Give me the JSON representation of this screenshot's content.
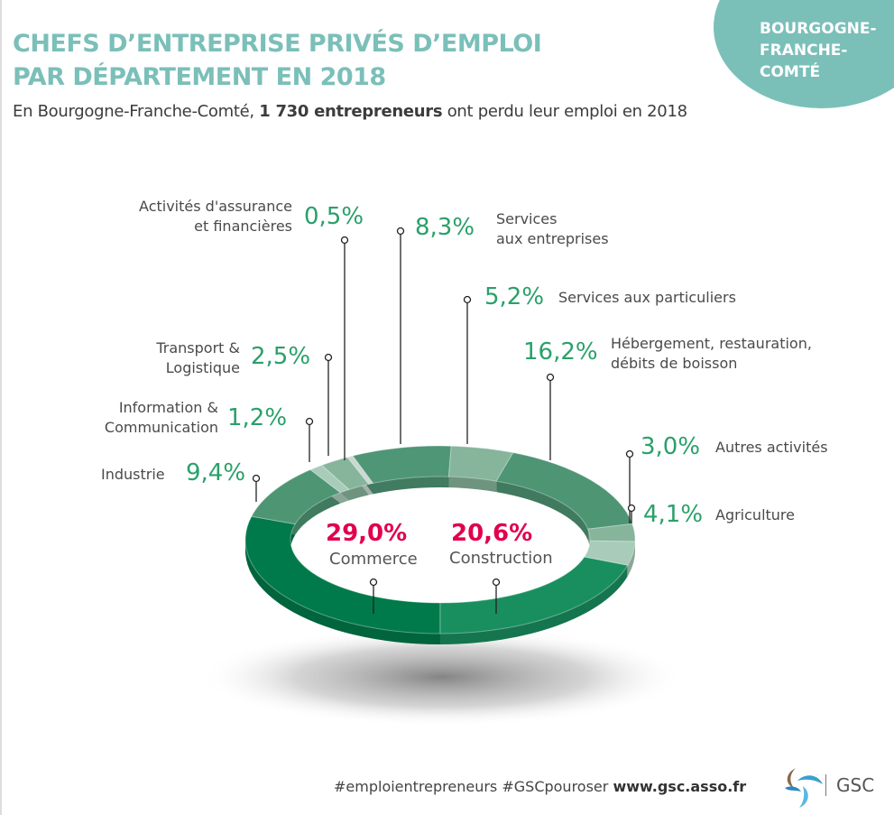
{
  "header": {
    "title_line1": "CHEFS D’ENTREPRISE PRIVÉS D’EMPLOI",
    "title_line2": "PAR DÉPARTEMENT EN 2018",
    "subtitle_pre": "En Bourgogne-Franche-Comté, ",
    "subtitle_bold": "1 730 entrepreneurs",
    "subtitle_post": " ont perdu leur emploi en 2018",
    "region": "BOURGOGNE-\nFRANCHE-\nCOMTÉ"
  },
  "footer": {
    "hashtags": "#emploientrepreneurs #GSCpouroser ",
    "url": "www.gsc.asso.fr",
    "brand": "GSC"
  },
  "colors": {
    "title": "#7bbfb9",
    "pct": "#2aa06a",
    "highlight": "#e0004d"
  },
  "chart_data": {
    "type": "pie",
    "variant": "3d-donut",
    "title": "CHEFS D’ENTREPRISE PRIVÉS D’EMPLOI PAR DÉPARTEMENT EN 2018",
    "segments": [
      {
        "name": "Commerce",
        "value": 29.0,
        "label": "29,0%",
        "color": "#007a4a"
      },
      {
        "name": "Industrie",
        "value": 9.4,
        "label": "9,4%",
        "color": "#4e9574"
      },
      {
        "name": "Information &\nCommunication",
        "value": 1.2,
        "label": "1,2%",
        "color": "#a9cbb9"
      },
      {
        "name": "Transport &\nLogistique",
        "value": 2.5,
        "label": "2,5%",
        "color": "#86b59c"
      },
      {
        "name": "Activités d'assurance\net financières",
        "value": 0.5,
        "label": "0,5%",
        "color": "#c9d9d1"
      },
      {
        "name": "Services\naux entreprises",
        "value": 8.3,
        "label": "8,3%",
        "color": "#4f9676"
      },
      {
        "name": "Services aux particuliers",
        "value": 5.2,
        "label": "5,2%",
        "color": "#86b59c"
      },
      {
        "name": "Hébergement, restauration,\ndébits de boisson",
        "value": 16.2,
        "label": "16,2%",
        "color": "#4e9574"
      },
      {
        "name": "Autres activités",
        "value": 3.0,
        "label": "3,0%",
        "color": "#86b59c"
      },
      {
        "name": "Agriculture",
        "value": 4.1,
        "label": "4,1%",
        "color": "#a9cbb9"
      },
      {
        "name": "Construction",
        "value": 20.6,
        "label": "20,6%",
        "color": "#198f5f"
      }
    ]
  }
}
